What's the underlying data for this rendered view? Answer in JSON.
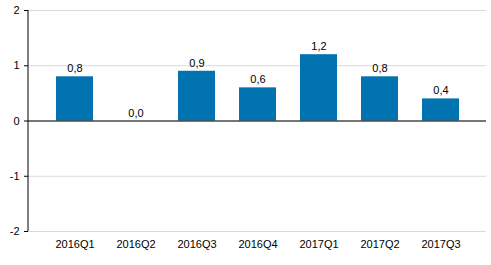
{
  "chart_data": {
    "type": "bar",
    "categories": [
      "2016Q1",
      "2016Q2",
      "2016Q3",
      "2016Q4",
      "2017Q1",
      "2017Q2",
      "2017Q3"
    ],
    "values": [
      0.8,
      0.0,
      0.9,
      0.6,
      1.2,
      0.8,
      0.4
    ],
    "value_labels": [
      "0,8",
      "0,0",
      "0,9",
      "0,6",
      "1,2",
      "0,8",
      "0,4"
    ],
    "data_labels": true,
    "color": "#0073b0",
    "ylim": [
      -2,
      2
    ],
    "yticks": [
      -2,
      -1,
      0,
      1,
      2
    ],
    "grid": true
  }
}
